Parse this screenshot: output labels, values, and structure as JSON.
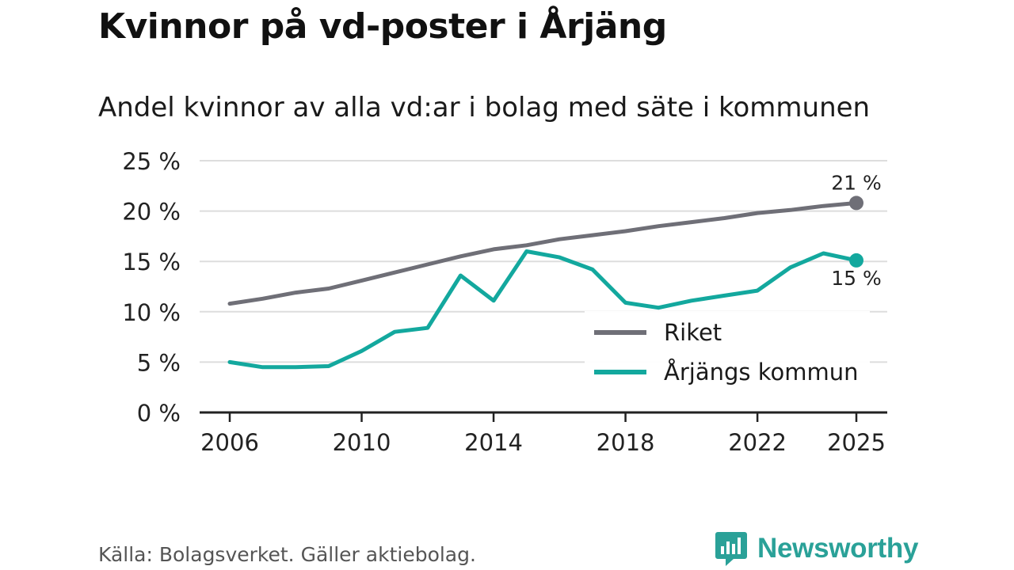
{
  "title": "Kvinnor på vd-poster i Årjäng",
  "subtitle": "Andel kvinnor av alla vd:ar i bolag med säte i kommunen",
  "source": "Källa: Bolagsverket. Gäller aktiebolag.",
  "brand": {
    "name": "Newsworthy",
    "icon": "newsworthy-logo-icon"
  },
  "colors": {
    "riket": "#6f6f77",
    "arjang": "#13a89e",
    "grid": "#dddddd",
    "axis": "#222222"
  },
  "chart_data": {
    "type": "line",
    "title": "Kvinnor på vd-poster i Årjäng",
    "subtitle": "Andel kvinnor av alla vd:ar i bolag med säte i kommunen",
    "xlabel": "",
    "ylabel": "",
    "x": [
      2006,
      2007,
      2008,
      2009,
      2010,
      2011,
      2012,
      2013,
      2014,
      2015,
      2016,
      2017,
      2018,
      2019,
      2020,
      2021,
      2022,
      2023,
      2024,
      2025
    ],
    "xlim": [
      2006,
      2025
    ],
    "ylim": [
      0,
      25
    ],
    "y_ticks": [
      0,
      5,
      10,
      15,
      20,
      25
    ],
    "y_tick_labels": [
      "0 %",
      "5 %",
      "10 %",
      "15 %",
      "20 %",
      "25 %"
    ],
    "x_ticks": [
      2006,
      2010,
      2014,
      2018,
      2022,
      2025
    ],
    "x_tick_labels": [
      "2006",
      "2010",
      "2014",
      "2018",
      "2022",
      "2025"
    ],
    "grid": true,
    "legend_position": "bottom-right",
    "series": [
      {
        "name": "Riket",
        "color": "#6f6f77",
        "values": [
          10.8,
          11.3,
          11.9,
          12.3,
          13.1,
          13.9,
          14.7,
          15.5,
          16.2,
          16.6,
          17.2,
          17.6,
          18.0,
          18.5,
          18.9,
          19.3,
          19.8,
          20.1,
          20.5,
          20.8
        ],
        "end_label": "21 %"
      },
      {
        "name": "Årjängs kommun",
        "color": "#13a89e",
        "values": [
          5.0,
          4.5,
          4.5,
          4.6,
          6.1,
          8.0,
          8.4,
          13.6,
          11.1,
          16.0,
          15.4,
          14.2,
          10.9,
          10.4,
          11.1,
          11.6,
          12.1,
          14.4,
          15.8,
          15.1
        ],
        "end_label": "15 %"
      }
    ]
  }
}
